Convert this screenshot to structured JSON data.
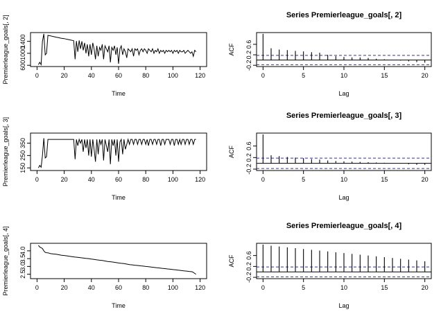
{
  "chart_data": [
    {
      "id": "ts1",
      "type": "line",
      "title": "",
      "xlabel": "Time",
      "ylabel": "Premierleague_goals[, 2]",
      "xlim": [
        0,
        120
      ],
      "ylim": [
        600,
        1650
      ],
      "xticks": [
        0,
        20,
        40,
        60,
        80,
        100,
        120
      ],
      "yticks": [
        600,
        1000,
        1400
      ],
      "x": [
        1,
        2,
        3,
        4,
        5,
        6,
        7,
        8,
        9,
        10,
        11,
        12,
        13,
        14,
        15,
        16,
        17,
        18,
        19,
        20,
        21,
        22,
        23,
        24,
        25,
        26,
        27,
        28,
        29,
        30,
        31,
        32,
        33,
        34,
        35,
        36,
        37,
        38,
        39,
        40,
        41,
        42,
        43,
        44,
        45,
        46,
        47,
        48,
        49,
        50,
        51,
        52,
        53,
        54,
        55,
        56,
        57,
        58,
        59,
        60,
        61,
        62,
        63,
        64,
        65,
        66,
        67,
        68,
        69,
        70,
        71,
        72,
        73,
        74,
        75,
        76,
        77,
        78,
        79,
        80,
        81,
        82,
        83,
        84,
        85,
        86,
        87,
        88,
        89,
        90,
        91,
        92,
        93,
        94,
        95,
        96,
        97,
        98,
        99,
        100,
        101,
        102,
        103,
        104,
        105,
        106,
        107,
        108,
        109,
        110,
        111,
        112,
        113,
        114,
        115,
        116,
        117
      ],
      "y": [
        620,
        700,
        620,
        1400,
        1650,
        950,
        1000,
        1600,
        1590,
        1580,
        1570,
        1560,
        1550,
        1540,
        1530,
        1520,
        1510,
        1500,
        1495,
        1490,
        1480,
        1470,
        1460,
        1450,
        1440,
        1430,
        1420,
        800,
        1410,
        1050,
        1430,
        1150,
        1400,
        1100,
        1350,
        1000,
        1300,
        900,
        1300,
        950,
        1350,
        1150,
        800,
        1250,
        900,
        1200,
        1100,
        1300,
        800,
        1250,
        1150,
        1050,
        1250,
        700,
        1200,
        1100,
        1250,
        950,
        1200,
        650,
        1150,
        1250,
        950,
        1150,
        1050,
        850,
        1150,
        1100,
        1050,
        1150,
        900,
        1150,
        1100,
        1150,
        950,
        1100,
        1150,
        1050,
        1150,
        1100,
        1000,
        1150,
        1100,
        1050,
        1150,
        1000,
        1100,
        1050,
        1150,
        1000,
        1100,
        1050,
        1100,
        1000,
        1100,
        1050,
        1100,
        1050,
        1100,
        1000,
        1100,
        1050,
        1100,
        1000,
        1100,
        1050,
        1050,
        1100,
        1000,
        1050,
        1100,
        1050,
        1000,
        1050,
        900,
        1100,
        1050
      ]
    },
    {
      "id": "acf1",
      "type": "bar",
      "title": "Series  Premierleague_goals[, 2]",
      "xlabel": "Lag",
      "ylabel": "ACF",
      "xlim": [
        0,
        20
      ],
      "ylim": [
        -0.2,
        1.0
      ],
      "xticks": [
        0,
        5,
        10,
        15,
        20
      ],
      "yticks": [
        -0.2,
        0.2,
        0.6
      ],
      "ci": 0.18,
      "lags": [
        0,
        1,
        2,
        3,
        4,
        5,
        6,
        7,
        8,
        9,
        10,
        11,
        12,
        13,
        14,
        15,
        16,
        17,
        18,
        19,
        20
      ],
      "values": [
        1.0,
        0.45,
        0.4,
        0.38,
        0.35,
        0.33,
        0.3,
        0.28,
        0.2,
        0.15,
        0.12,
        0.1,
        0.1,
        0.08,
        0.05,
        0.03,
        0.0,
        -0.02,
        -0.05,
        -0.08,
        -0.1
      ]
    },
    {
      "id": "ts2",
      "type": "line",
      "title": "",
      "xlabel": "Time",
      "ylabel": "Premierleague_goals[, 3]",
      "xlim": [
        0,
        120
      ],
      "ylim": [
        140,
        420
      ],
      "xticks": [
        0,
        20,
        40,
        60,
        80,
        100,
        120
      ],
      "yticks": [
        150,
        250,
        350
      ],
      "x": [
        1,
        2,
        3,
        4,
        5,
        6,
        7,
        8,
        9,
        10,
        11,
        12,
        13,
        14,
        15,
        16,
        17,
        18,
        19,
        20,
        21,
        22,
        23,
        24,
        25,
        26,
        27,
        28,
        29,
        30,
        31,
        32,
        33,
        34,
        35,
        36,
        37,
        38,
        39,
        40,
        41,
        42,
        43,
        44,
        45,
        46,
        47,
        48,
        49,
        50,
        51,
        52,
        53,
        54,
        55,
        56,
        57,
        58,
        59,
        60,
        61,
        62,
        63,
        64,
        65,
        66,
        67,
        68,
        69,
        70,
        71,
        72,
        73,
        74,
        75,
        76,
        77,
        78,
        79,
        80,
        81,
        82,
        83,
        84,
        85,
        86,
        87,
        88,
        89,
        90,
        91,
        92,
        93,
        94,
        95,
        96,
        97,
        98,
        99,
        100,
        101,
        102,
        103,
        104,
        105,
        106,
        107,
        108,
        109,
        110,
        111,
        112,
        113,
        114,
        115,
        116,
        117
      ],
      "y": [
        150,
        170,
        155,
        250,
        390,
        230,
        240,
        380,
        380,
        380,
        380,
        380,
        380,
        380,
        380,
        380,
        380,
        380,
        380,
        380,
        380,
        380,
        380,
        380,
        380,
        380,
        380,
        220,
        380,
        330,
        380,
        350,
        380,
        280,
        380,
        310,
        380,
        250,
        380,
        240,
        380,
        300,
        200,
        380,
        260,
        380,
        340,
        380,
        210,
        380,
        330,
        280,
        380,
        180,
        380,
        330,
        380,
        250,
        380,
        200,
        360,
        380,
        260,
        380,
        300,
        340,
        380,
        340,
        380,
        380,
        340,
        380,
        380,
        340,
        380,
        380,
        340,
        380,
        380,
        340,
        380,
        330,
        380,
        380,
        340,
        380,
        380,
        340,
        380,
        380,
        330,
        380,
        380,
        340,
        380,
        380,
        380,
        340,
        380,
        380,
        330,
        380,
        380,
        340,
        380,
        340,
        380,
        380,
        340,
        380,
        380,
        340,
        380,
        380,
        340,
        380,
        380
      ]
    },
    {
      "id": "acf2",
      "type": "bar",
      "title": "Series  Premierleague_goals[, 3]",
      "xlabel": "Lag",
      "ylabel": "ACF",
      "xlim": [
        0,
        20
      ],
      "ylim": [
        -0.2,
        1.0
      ],
      "xticks": [
        0,
        5,
        10,
        15,
        20
      ],
      "yticks": [
        -0.2,
        0.2,
        0.6
      ],
      "ci": 0.18,
      "lags": [
        0,
        1,
        2,
        3,
        4,
        5,
        6,
        7,
        8,
        9,
        10,
        11,
        12,
        13,
        14,
        15,
        16,
        17,
        18,
        19,
        20
      ],
      "values": [
        1.0,
        0.28,
        0.25,
        0.22,
        0.2,
        0.18,
        0.15,
        0.13,
        0.1,
        0.08,
        0.07,
        0.06,
        0.05,
        0.04,
        0.03,
        0.02,
        0.0,
        -0.01,
        -0.03,
        -0.05,
        -0.05
      ]
    },
    {
      "id": "ts3",
      "type": "line",
      "title": "",
      "xlabel": "Time",
      "ylabel": "Premierleague_goals[, 4]",
      "xlim": [
        0,
        120
      ],
      "ylim": [
        2.3,
        4.4
      ],
      "xticks": [
        0,
        20,
        40,
        60,
        80,
        100,
        120
      ],
      "yticks": [
        2.5,
        3.0,
        3.5,
        4.0
      ],
      "x": [
        1,
        2,
        3,
        4,
        5,
        6,
        7,
        8,
        9,
        10,
        12,
        14,
        16,
        18,
        20,
        22,
        24,
        26,
        28,
        30,
        32,
        34,
        36,
        38,
        40,
        42,
        44,
        46,
        48,
        50,
        52,
        54,
        56,
        58,
        60,
        62,
        64,
        66,
        68,
        70,
        72,
        74,
        76,
        78,
        80,
        82,
        84,
        86,
        88,
        90,
        92,
        94,
        96,
        98,
        100,
        102,
        104,
        106,
        108,
        110,
        112,
        114,
        115,
        116,
        117
      ],
      "y": [
        4.35,
        4.25,
        4.2,
        4.15,
        4.0,
        3.9,
        3.88,
        3.87,
        3.85,
        3.82,
        3.8,
        3.78,
        3.75,
        3.72,
        3.7,
        3.68,
        3.65,
        3.62,
        3.6,
        3.58,
        3.56,
        3.54,
        3.52,
        3.5,
        3.47,
        3.45,
        3.42,
        3.4,
        3.38,
        3.35,
        3.32,
        3.3,
        3.28,
        3.25,
        3.22,
        3.2,
        3.18,
        3.15,
        3.12,
        3.1,
        3.08,
        3.06,
        3.04,
        3.02,
        3.0,
        2.98,
        2.96,
        2.94,
        2.92,
        2.9,
        2.88,
        2.86,
        2.84,
        2.82,
        2.8,
        2.78,
        2.76,
        2.74,
        2.72,
        2.7,
        2.68,
        2.66,
        2.62,
        2.55,
        2.5
      ]
    },
    {
      "id": "acf3",
      "type": "bar",
      "title": "Series  Premierleague_goals[, 4]",
      "xlabel": "Lag",
      "ylabel": "ACF",
      "xlim": [
        0,
        20
      ],
      "ylim": [
        -0.2,
        1.0
      ],
      "xticks": [
        0,
        5,
        10,
        15,
        20
      ],
      "yticks": [
        -0.2,
        0.2,
        0.6
      ],
      "ci": 0.18,
      "lags": [
        0,
        1,
        2,
        3,
        4,
        5,
        6,
        7,
        8,
        9,
        10,
        11,
        12,
        13,
        14,
        15,
        16,
        17,
        18,
        19,
        20
      ],
      "values": [
        1.0,
        0.96,
        0.93,
        0.9,
        0.87,
        0.84,
        0.81,
        0.78,
        0.75,
        0.72,
        0.69,
        0.66,
        0.63,
        0.6,
        0.57,
        0.54,
        0.51,
        0.48,
        0.45,
        0.42,
        0.39
      ]
    }
  ]
}
